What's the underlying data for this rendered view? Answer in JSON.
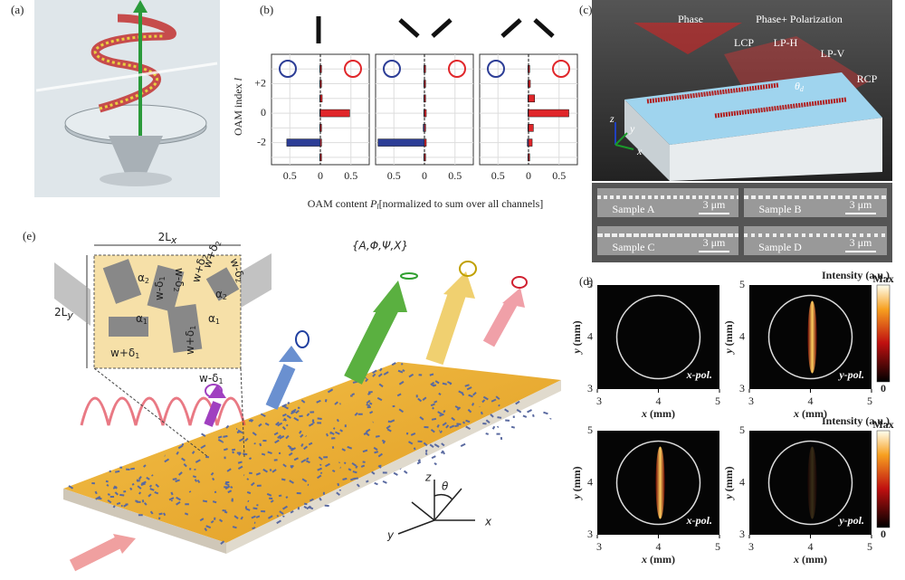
{
  "panel_a": {
    "label": "(a)"
  },
  "panel_b": {
    "label": "(b)",
    "y_title": "OAM index",
    "y_symbol": "l",
    "x_title": "OAM content",
    "x_symbol": "P",
    "x_subscript": "l",
    "x_note": "[normalized to sum over all channels]",
    "l_values": [
      -3,
      -2,
      -1,
      0,
      1,
      2,
      3
    ],
    "ylim": [
      -3.5,
      4
    ],
    "yticks": [
      {
        "value": 2,
        "label": "+2"
      },
      0,
      -2
    ],
    "xlim": [
      -0.8,
      0.8
    ],
    "xticks": [
      {
        "value": -0.5,
        "label": "0.5"
      },
      0,
      0.5
    ],
    "lcp_color": "#2c3d96",
    "rcp_color": "#e0262a",
    "charts": [
      {
        "lcp": [
          -0.01,
          -0.55,
          -0.01,
          -0.01,
          -0.01,
          -0.01,
          -0.01
        ],
        "rcp": [
          0.02,
          0.02,
          0.02,
          0.48,
          0.03,
          0.02,
          0.02
        ]
      },
      {
        "lcp": [
          -0.01,
          -0.76,
          -0.02,
          -0.01,
          -0.01,
          -0.01,
          -0.01
        ],
        "rcp": [
          0.02,
          0.03,
          0.02,
          0.03,
          0.02,
          0.02,
          0.02
        ]
      },
      {
        "lcp": [
          -0.01,
          -0.02,
          -0.01,
          -0.01,
          -0.01,
          -0.01,
          -0.01
        ],
        "rcp": [
          0.02,
          0.06,
          0.08,
          0.66,
          0.1,
          0.03,
          0.02
        ]
      }
    ]
  },
  "panel_c": {
    "label": "(c)",
    "phase": "Phase",
    "phase_pol": "Phase+ Polarization",
    "lcp": "LCP",
    "lph": "LP-H",
    "lpv": "LP-V",
    "rcp": "RCP",
    "angle_symbol": "θ",
    "angle_subscript": "d",
    "axes": [
      "x",
      "y",
      "z"
    ],
    "samples": [
      {
        "name": "Sample A",
        "scale": "3 μm"
      },
      {
        "name": "Sample B",
        "scale": "3 μm"
      },
      {
        "name": "Sample C",
        "scale": "3 μm"
      },
      {
        "name": "Sample D",
        "scale": "3 μm"
      }
    ]
  },
  "panel_d": {
    "label": "(d)",
    "x_title": "x",
    "y_title": "y",
    "unit": "(mm)",
    "xlim": [
      3,
      5
    ],
    "ylim": [
      3,
      5
    ],
    "xticks": [
      3,
      4,
      5
    ],
    "yticks": [
      3,
      4,
      5
    ],
    "colorbar_title": "Intensity (a.u.)",
    "colorbar_max": "Max",
    "colorbar_min": "0",
    "plots": [
      {
        "pol": "x-pol.",
        "streak": "none",
        "colorbar": false
      },
      {
        "pol": "y-pol.",
        "streak": "strong",
        "colorbar": true
      },
      {
        "pol": "x-pol.",
        "streak": "strong",
        "colorbar": false
      },
      {
        "pol": "y-pol.",
        "streak": "faint",
        "colorbar": true
      }
    ]
  },
  "panel_e": {
    "label": "(e)",
    "width_label": "2L",
    "width_sub": "x",
    "height_label": "2L",
    "height_sub": "y",
    "params": "{A,Φ,Ψ,X}",
    "alpha": "α",
    "sub1": "1",
    "sub2": "2",
    "w_plus": "w+δ",
    "w_minus": "w-δ",
    "axes": [
      "x",
      "y",
      "z",
      "θ"
    ]
  }
}
